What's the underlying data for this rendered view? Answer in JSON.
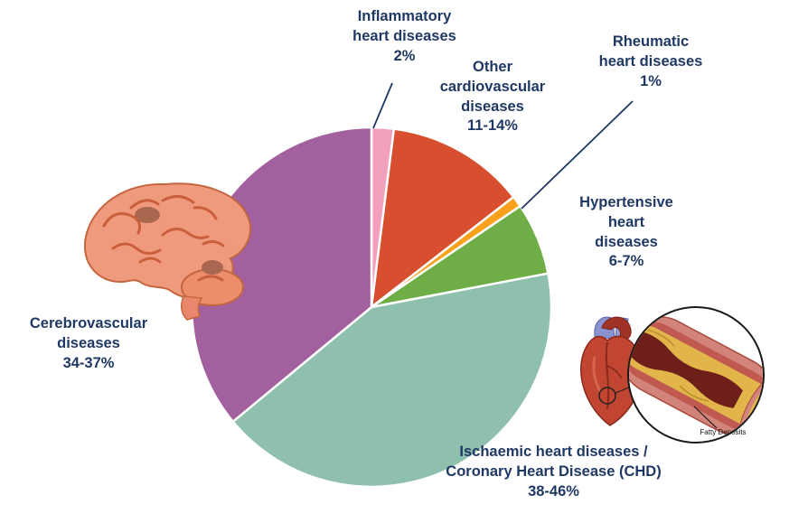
{
  "chart_data": {
    "type": "pie",
    "title": "",
    "direction": "clockwise",
    "start_angle_deg": 0,
    "legend_position": "none",
    "total": 100,
    "slices": [
      {
        "label": "Inflammatory heart diseases",
        "value_label": "2%",
        "value": 2,
        "color": "#f2a0bd",
        "display_text": "Inflammatory\nheart diseases\n2%"
      },
      {
        "label": "Other cardiovascular diseases",
        "value_label": "11-14%",
        "value": 12.5,
        "color": "#d84f2f",
        "display_text": "Other\ncardiovascular\ndiseases\n11-14%"
      },
      {
        "label": "Rheumatic heart diseases",
        "value_label": "1%",
        "value": 1,
        "color": "#f9a11b",
        "display_text": "Rheumatic\nheart diseases\n1%"
      },
      {
        "label": "Hypertensive heart diseases",
        "value_label": "6-7%",
        "value": 6.5,
        "color": "#6fae47",
        "display_text": "Hypertensive\nheart\ndiseases\n6-7%"
      },
      {
        "label": "Ischaemic heart diseases / Coronary Heart Disease (CHD)",
        "value_label": "38-46%",
        "value": 42,
        "color": "#8fc0ad",
        "display_text": "Ischaemic heart diseases /\nCoronary Heart Disease (CHD)\n38-46%"
      },
      {
        "label": "Cerebrovascular diseases",
        "value_label": "34-37%",
        "value": 36,
        "color": "#a2609e",
        "display_text": "Cerebrovascular\ndiseases\n34-37%"
      }
    ]
  },
  "illustrations": {
    "fatty_deposits_label": "Fatty Deposits"
  },
  "colors": {
    "label_text": "#1f3864",
    "callout_line": "#1f3864",
    "slice_border": "#ffffff",
    "background": "#ffffff"
  }
}
